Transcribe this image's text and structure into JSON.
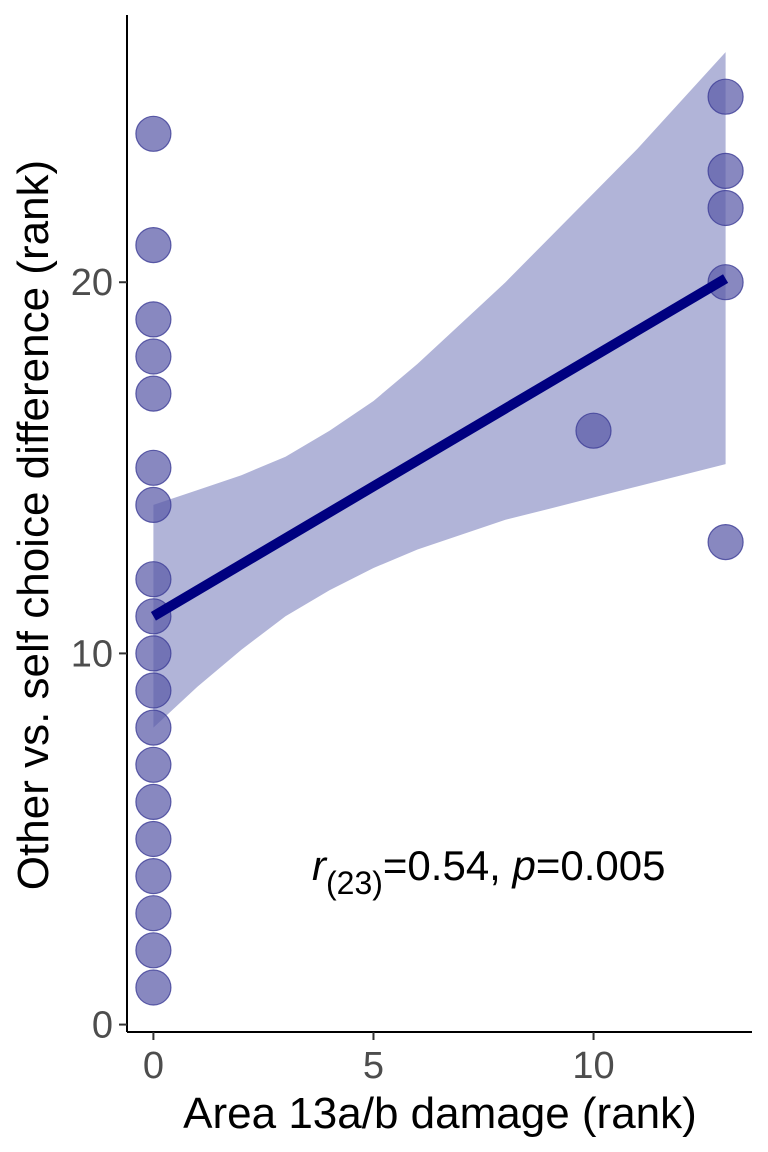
{
  "chart_data": {
    "type": "scatter",
    "xlabel": "Area 13a/b damage (rank)",
    "ylabel": "Other vs. self choice difference (rank)",
    "xlim": [
      -0.6,
      13.6
    ],
    "ylim": [
      -0.2,
      27.2
    ],
    "x_ticks": [
      "0",
      "5",
      "10"
    ],
    "x_tick_values": [
      0,
      5,
      10
    ],
    "y_ticks": [
      "0",
      "10",
      "20"
    ],
    "y_tick_values": [
      0,
      10,
      20
    ],
    "points": [
      {
        "x": 0,
        "y": 1
      },
      {
        "x": 0,
        "y": 2
      },
      {
        "x": 0,
        "y": 3
      },
      {
        "x": 0,
        "y": 4
      },
      {
        "x": 0,
        "y": 5
      },
      {
        "x": 0,
        "y": 6
      },
      {
        "x": 0,
        "y": 7
      },
      {
        "x": 0,
        "y": 8
      },
      {
        "x": 0,
        "y": 9
      },
      {
        "x": 0,
        "y": 10
      },
      {
        "x": 0,
        "y": 11
      },
      {
        "x": 0,
        "y": 12
      },
      {
        "x": 0,
        "y": 14
      },
      {
        "x": 0,
        "y": 15
      },
      {
        "x": 0,
        "y": 17
      },
      {
        "x": 0,
        "y": 18
      },
      {
        "x": 0,
        "y": 19
      },
      {
        "x": 0,
        "y": 21
      },
      {
        "x": 0,
        "y": 24
      },
      {
        "x": 10,
        "y": 16
      },
      {
        "x": 13,
        "y": 13
      },
      {
        "x": 13,
        "y": 20
      },
      {
        "x": 13,
        "y": 22
      },
      {
        "x": 13,
        "y": 23
      },
      {
        "x": 13,
        "y": 25
      }
    ],
    "fit_line": {
      "x": [
        0,
        13
      ],
      "y": [
        11.0,
        20.1
      ]
    },
    "confidence_band": {
      "x": [
        0,
        1,
        2,
        3,
        4,
        5,
        6,
        7,
        8,
        9,
        10,
        11,
        12,
        13
      ],
      "lower": [
        8.0,
        9.1,
        10.1,
        11.0,
        11.7,
        12.3,
        12.8,
        13.2,
        13.6,
        13.9,
        14.2,
        14.5,
        14.8,
        15.1
      ],
      "upper": [
        14.0,
        14.4,
        14.8,
        15.3,
        16.0,
        16.8,
        17.8,
        18.9,
        20.0,
        21.2,
        22.4,
        23.6,
        24.9,
        26.2
      ]
    },
    "annotation": {
      "r_symbol": "r",
      "df": "(23)",
      "r_value": "=0.54, ",
      "p_symbol": "p",
      "p_value": "=0.005"
    },
    "colors": {
      "points": "#5a5aa8",
      "point_stroke": "#3c3c96",
      "fit_line": "#000080",
      "band": "#b1b4d8",
      "axis": "#000000"
    },
    "grid": false
  }
}
